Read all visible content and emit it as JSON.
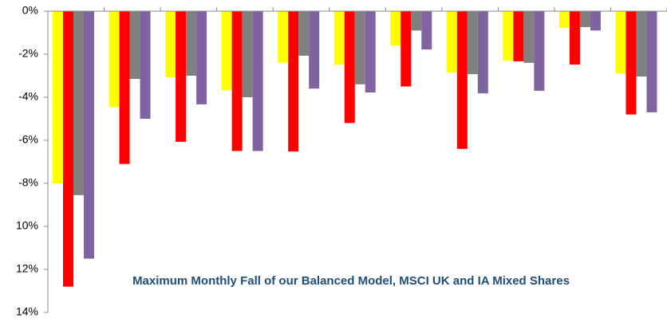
{
  "chart_data": {
    "type": "bar",
    "title": "Maximum Monthly Fall of our Balanced Model, MSCI UK and IA Mixed Shares",
    "categories": [
      null,
      null,
      null,
      null,
      null,
      null,
      null,
      null,
      null,
      null,
      null
    ],
    "series": [
      {
        "color": "#ffff00",
        "values": [
          -8.0,
          -4.45,
          -3.07,
          -3.67,
          -2.4,
          -2.48,
          -1.6,
          -2.85,
          -2.3,
          -0.78,
          -2.9
        ]
      },
      {
        "color": "#ff0000",
        "values": [
          -12.8,
          -7.1,
          -6.07,
          -6.5,
          -6.52,
          -5.2,
          -3.5,
          -6.4,
          -2.33,
          -2.48,
          -4.8
        ]
      },
      {
        "color": "#808080",
        "values": [
          -8.55,
          -3.15,
          -3.0,
          -4.0,
          -2.07,
          -3.4,
          -0.9,
          -2.93,
          -2.4,
          -0.74,
          -3.04
        ]
      },
      {
        "color": "#8064a2",
        "values": [
          -11.5,
          -5.0,
          -4.33,
          -6.5,
          -3.6,
          -3.78,
          -1.78,
          -3.82,
          -3.7,
          -0.9,
          -4.7
        ]
      }
    ],
    "ylim": [
      -14,
      0
    ],
    "yticks": [
      {
        "value": 0,
        "label": "0%"
      },
      {
        "value": -2,
        "label": "-2%"
      },
      {
        "value": -4,
        "label": "-4%"
      },
      {
        "value": -6,
        "label": "-6%"
      },
      {
        "value": -8,
        "label": "-8%"
      },
      {
        "value": -10,
        "label": "10%"
      },
      {
        "value": -12,
        "label": "12%"
      },
      {
        "value": -14,
        "label": "14%"
      }
    ]
  }
}
